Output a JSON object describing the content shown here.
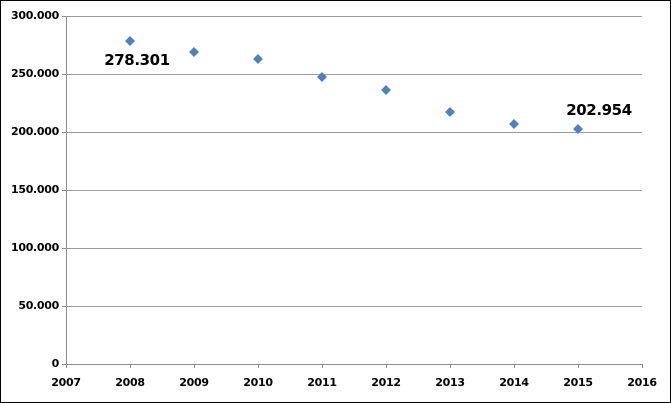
{
  "chart_data": {
    "type": "scatter",
    "title": "",
    "xlabel": "",
    "ylabel": "",
    "grid": true,
    "legend": false,
    "xlim": [
      2007,
      2016
    ],
    "ylim": [
      0,
      300000
    ],
    "x": [
      2008,
      2009,
      2010,
      2011,
      2012,
      2013,
      2014,
      2015
    ],
    "values": [
      278301,
      269000,
      263000,
      247000,
      236000,
      217000,
      207000,
      202954
    ],
    "x_tick_values": [
      2007,
      2008,
      2009,
      2010,
      2011,
      2012,
      2013,
      2014,
      2015,
      2016
    ],
    "x_tick_labels": [
      "2007",
      "2008",
      "2009",
      "2010",
      "2011",
      "2012",
      "2013",
      "2014",
      "2015",
      "2016"
    ],
    "y_tick_values": [
      0,
      50000,
      100000,
      150000,
      200000,
      250000,
      300000
    ],
    "y_tick_labels": [
      "0",
      "50.000",
      "100.000",
      "150.000",
      "200.000",
      "250.000",
      "300.000"
    ],
    "annotations": [
      {
        "text": "278.301",
        "x": 2008,
        "value": 278301,
        "placement": "below"
      },
      {
        "text": "202.954",
        "x": 2015,
        "value": 202954,
        "placement": "above-right"
      }
    ],
    "marker": {
      "shape": "diamond",
      "color": "#4F81BD"
    },
    "colors": {
      "gridline": "#9c9c9c",
      "axis": "#8c8c8c",
      "text": "#000000",
      "background": "#ffffff",
      "border": "#000000"
    }
  }
}
